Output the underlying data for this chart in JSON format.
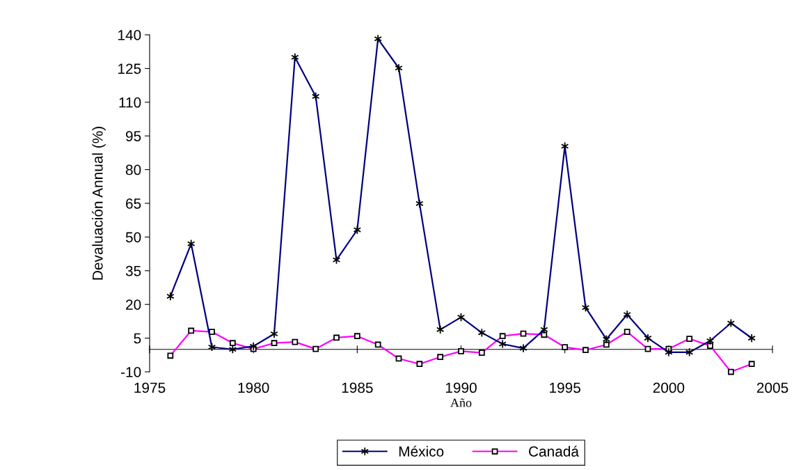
{
  "chart_data": {
    "type": "line",
    "xlabel": "Año",
    "ylabel": "Devaluación Annual (%)",
    "x": [
      1976,
      1977,
      1978,
      1979,
      1980,
      1981,
      1982,
      1983,
      1984,
      1985,
      1986,
      1987,
      1988,
      1989,
      1990,
      1991,
      1992,
      1993,
      1994,
      1995,
      1996,
      1997,
      1998,
      1999,
      2000,
      2001,
      2002,
      2003,
      2004
    ],
    "series": [
      {
        "name": "México",
        "color": "#000080",
        "marker": "cross",
        "values": [
          23.6,
          47.0,
          1.0,
          0,
          1.4,
          6.9,
          130,
          112.6,
          39.8,
          53.2,
          138.2,
          125.2,
          64.9,
          8.8,
          14.3,
          7.4,
          2.4,
          0.5,
          8.8,
          90.4,
          18.6,
          4.5,
          15.5,
          5.0,
          -1.3,
          -1.3,
          3.8,
          11.7,
          5.0
        ]
      },
      {
        "name": "Canadá",
        "color": "#ff00ff",
        "marker": "square",
        "values": [
          -2.8,
          8.3,
          7.8,
          2.8,
          0.2,
          2.8,
          3.3,
          0.2,
          5.2,
          5.9,
          2.1,
          -4.1,
          -6.5,
          -3.4,
          -0.8,
          -1.5,
          5.9,
          7.0,
          6.5,
          1.0,
          -0.3,
          2.1,
          7.8,
          0.2,
          0.2,
          4.7,
          1.6,
          -10,
          -6.5
        ]
      }
    ],
    "xlim": [
      1975,
      2005
    ],
    "xticks": [
      1975,
      1980,
      1985,
      1990,
      1995,
      2000,
      2005
    ],
    "ylim": [
      -10,
      140
    ],
    "yticks": [
      -10,
      5,
      20,
      35,
      50,
      65,
      80,
      95,
      110,
      125,
      140
    ],
    "grid": false,
    "legend": "bottom",
    "line_style": "solid"
  }
}
